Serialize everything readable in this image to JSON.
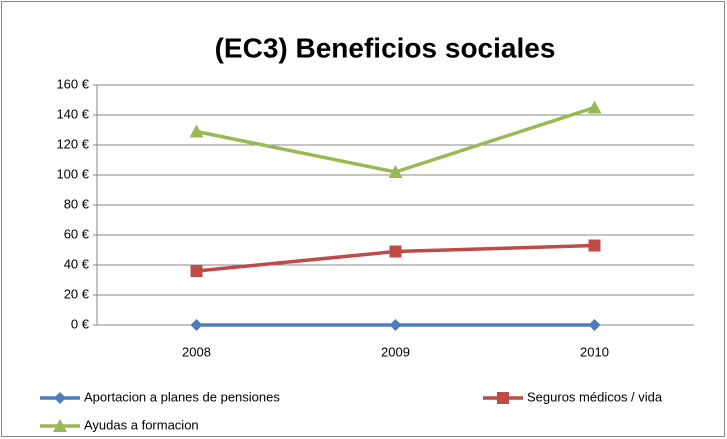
{
  "chart_data": {
    "type": "line",
    "title": "(EC3) Beneficios sociales",
    "categories": [
      "2008",
      "2009",
      "2010"
    ],
    "series": [
      {
        "name": "Aportacion a planes de pensiones",
        "color": "#4a7ebb",
        "marker": "diamond",
        "values": [
          0,
          0,
          0
        ]
      },
      {
        "name": "Seguros médicos / vida",
        "color": "#be4b48",
        "marker": "square",
        "values": [
          36,
          49,
          53
        ]
      },
      {
        "name": "Ayudas a formacion",
        "color": "#98b954",
        "marker": "triangle",
        "values": [
          129,
          102,
          145
        ]
      }
    ],
    "ylim": [
      0,
      160
    ],
    "yticks": [
      {
        "value": 0,
        "label": "0 €"
      },
      {
        "value": 20,
        "label": "20 €"
      },
      {
        "value": 40,
        "label": "40 €"
      },
      {
        "value": 60,
        "label": "60 €"
      },
      {
        "value": 80,
        "label": "80 €"
      },
      {
        "value": 100,
        "label": "100 €"
      },
      {
        "value": 120,
        "label": "120 €"
      },
      {
        "value": 140,
        "label": "140 €"
      },
      {
        "value": 160,
        "label": "160 €"
      }
    ],
    "grid": true,
    "legend": "bottom"
  }
}
